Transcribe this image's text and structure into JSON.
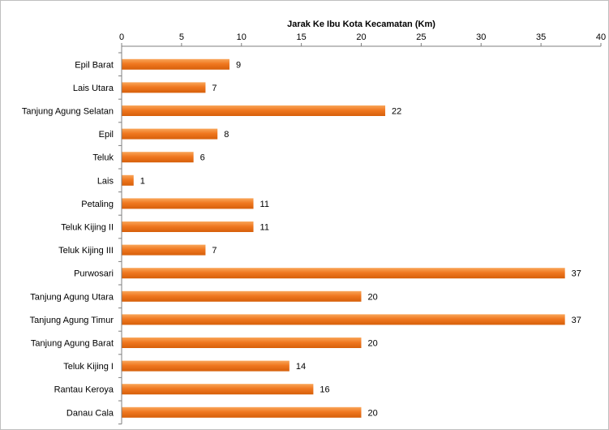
{
  "chart_data": {
    "type": "bar",
    "orientation": "horizontal",
    "title": "",
    "xlabel": "Jarak  Ke Ibu Kota Kecamatan  (Km)",
    "ylabel": "",
    "xlim": [
      0,
      40
    ],
    "x_ticks": [
      0,
      5,
      10,
      15,
      20,
      25,
      30,
      35,
      40
    ],
    "x_axis_position": "top",
    "grid": false,
    "legend": "none",
    "bar_color": "#f07820",
    "categories": [
      "Epil Barat",
      "Lais Utara",
      "Tanjung Agung Selatan",
      "Epil",
      "Teluk",
      "Lais",
      "Petaling",
      "Teluk Kijing II",
      "Teluk Kijing III",
      "Purwosari",
      "Tanjung Agung Utara",
      "Tanjung Agung Timur",
      "Tanjung Agung Barat",
      "Teluk Kijing I",
      "Rantau Keroya",
      "Danau Cala"
    ],
    "values": [
      9,
      7,
      22,
      8,
      6,
      1,
      11,
      11,
      7,
      37,
      20,
      37,
      20,
      14,
      16,
      20
    ]
  }
}
